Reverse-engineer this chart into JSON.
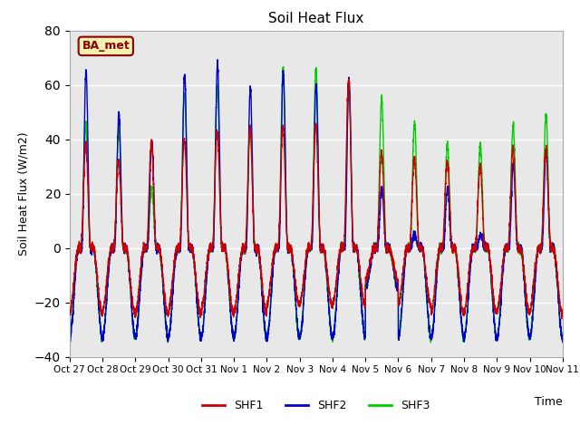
{
  "title": "Soil Heat Flux",
  "ylabel": "Soil Heat Flux (W/m2)",
  "xlabel": "Time",
  "ylim": [
    -40,
    80
  ],
  "yticks": [
    -40,
    -20,
    0,
    20,
    40,
    60,
    80
  ],
  "colors": {
    "SHF1": "#cc0000",
    "SHF2": "#0000cc",
    "SHF3": "#00cc00"
  },
  "legend_label": "BA_met",
  "background_color": "#e8e8e8",
  "x_labels": [
    "Oct 27",
    "Oct 28",
    "Oct 29",
    "Oct 30",
    "Oct 31",
    "Nov 1",
    "Nov 2",
    "Nov 3",
    "Nov 4",
    "Nov 5",
    "Nov 6",
    "Nov 7",
    "Nov 8",
    "Nov 9",
    "Nov 10",
    "Nov 11"
  ],
  "linewidth": 1.0,
  "n_days": 15,
  "points_per_day": 288
}
